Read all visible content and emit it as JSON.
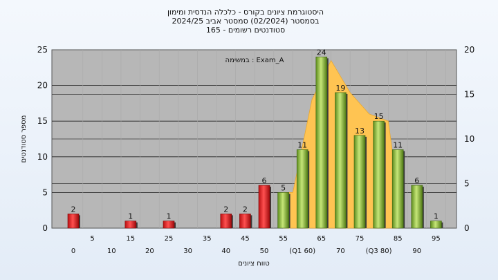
{
  "chart_data": {
    "type": "bar",
    "title_lines": [
      "היסטוגרמת ציונים בקורס - כלכלה הנדסית ומימון",
      "בסמסטר  (02/2024)  סמסטר אביב 2024/25",
      "סטודנטים רשומים - 165"
    ],
    "annotation": "במשימה : Exam_A",
    "ylabel": "מספר סטודנטים",
    "xlabel": "טווח ציונים",
    "ylim": [
      0,
      25
    ],
    "y_ticks": [
      0,
      5,
      10,
      15,
      20,
      25
    ],
    "y2lim": [
      0,
      20
    ],
    "y2_ticks": [
      0,
      5,
      10,
      15,
      20
    ],
    "x_tick_labels": [
      "0",
      "5",
      "10",
      "15",
      "20",
      "25",
      "30",
      "35",
      "40",
      "45",
      "50",
      "55",
      "(Q1 60)",
      "65",
      "70",
      "75",
      "(Q3 80)",
      "85",
      "90",
      "95"
    ],
    "bars": [
      {
        "x": 0,
        "value": 2,
        "label": "2",
        "color": "red"
      },
      {
        "x": 15,
        "value": 1,
        "label": "1",
        "color": "red"
      },
      {
        "x": 25,
        "value": 1,
        "label": "1",
        "color": "red"
      },
      {
        "x": 40,
        "value": 2,
        "label": "2",
        "color": "red"
      },
      {
        "x": 45,
        "value": 2,
        "label": "2",
        "color": "red"
      },
      {
        "x": 50,
        "value": 6,
        "label": "6",
        "color": "red"
      },
      {
        "x": 55,
        "value": 5,
        "label": "5",
        "color": "green"
      },
      {
        "x": 60,
        "value": 11,
        "label": "11",
        "color": "green"
      },
      {
        "x": 65,
        "value": 24,
        "label": "24",
        "color": "green"
      },
      {
        "x": 70,
        "value": 19,
        "label": "19",
        "color": "green"
      },
      {
        "x": 75,
        "value": 13,
        "label": "13",
        "color": "green"
      },
      {
        "x": 80,
        "value": 15,
        "label": "15",
        "color": "green"
      },
      {
        "x": 85,
        "value": 11,
        "label": "11",
        "color": "green"
      },
      {
        "x": 90,
        "value": 6,
        "label": "6",
        "color": "green"
      },
      {
        "x": 95,
        "value": 1,
        "label": "1",
        "color": "green"
      }
    ],
    "quartile_area": {
      "x": [
        55,
        57.5,
        62.5,
        67.5,
        72.5,
        77.5,
        82.5,
        85
      ],
      "y": [
        5,
        5,
        18,
        23.5,
        19,
        16,
        15,
        5
      ]
    },
    "colors": {
      "plot_bg": "#b7b7b7",
      "area": "#ffc452",
      "red_bar": "#e8282a",
      "green_bar": "#8fbf3c"
    },
    "grid": true
  }
}
